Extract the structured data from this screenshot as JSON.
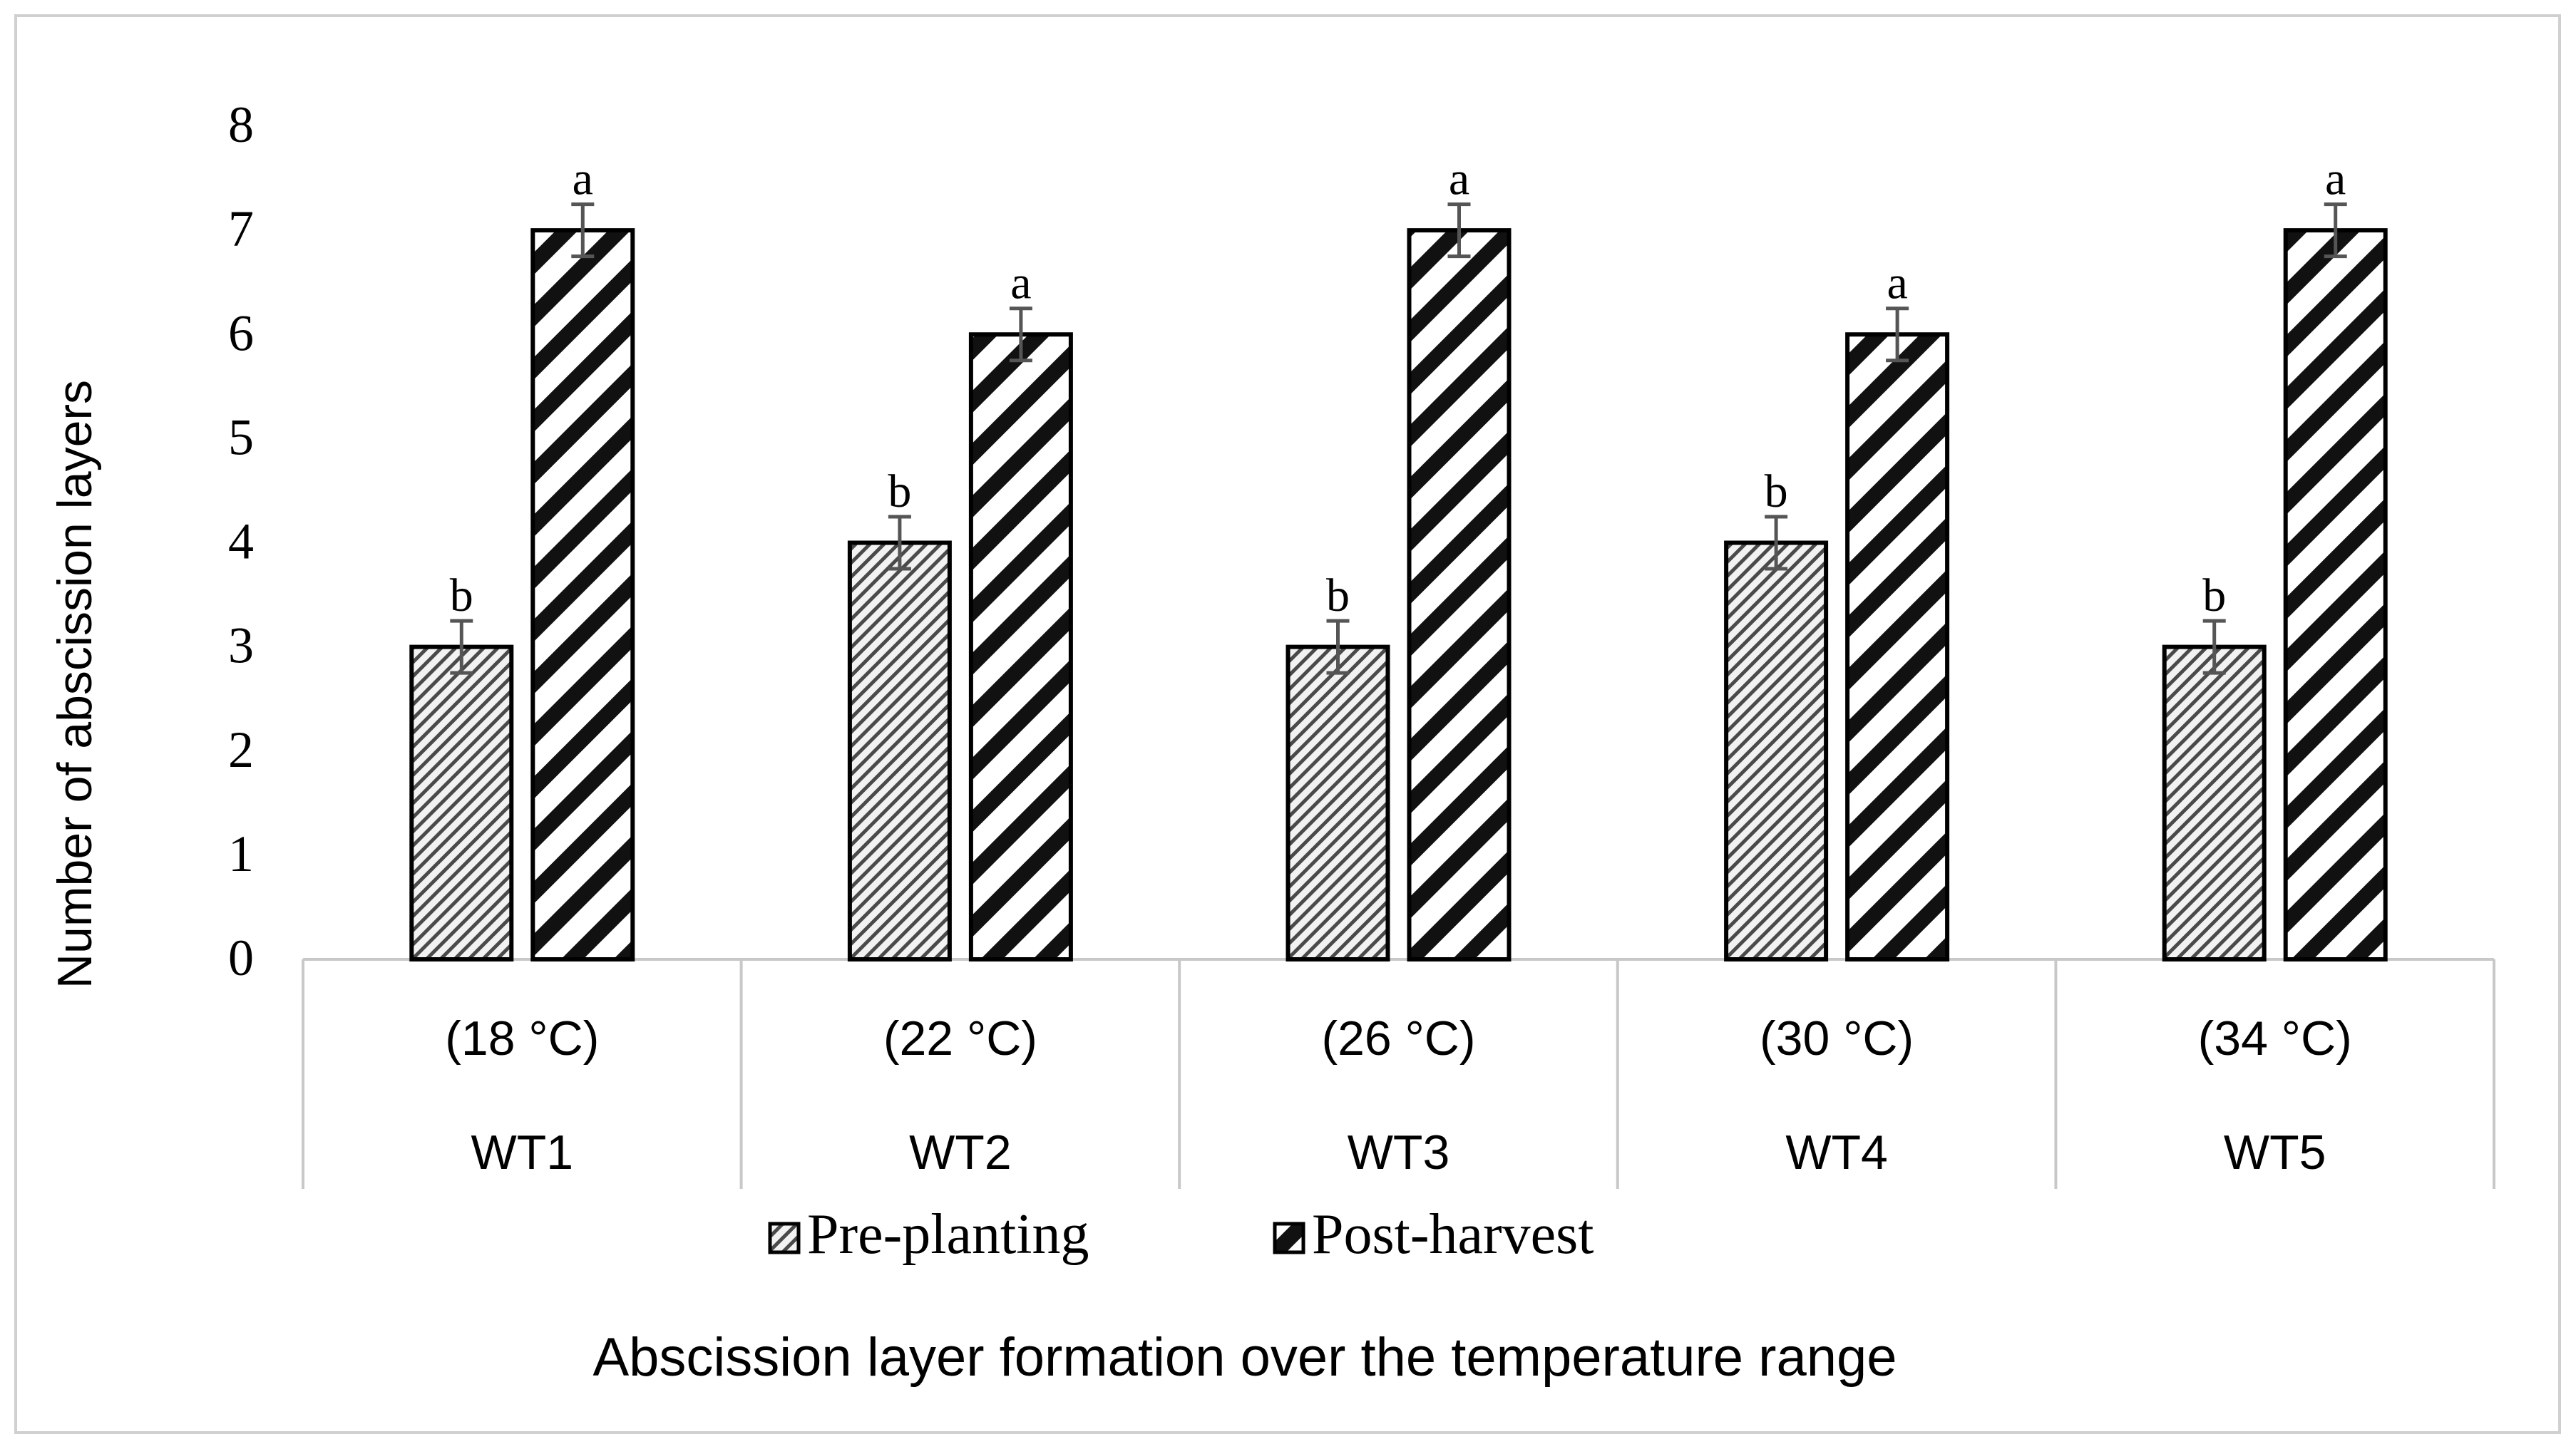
{
  "chart_data": {
    "type": "bar",
    "title": "",
    "ylabel": "Number of abscission layers",
    "xlabel": "Abscission layer formation over the temperature range",
    "ylim": [
      0,
      8
    ],
    "yticks": [
      "0",
      "1",
      "2",
      "3",
      "4",
      "5",
      "6",
      "7",
      "8"
    ],
    "categories": [
      {
        "temp": "(18 °C)",
        "name": "WT1"
      },
      {
        "temp": "(22 °C)",
        "name": "WT2"
      },
      {
        "temp": "(26 °C)",
        "name": "WT3"
      },
      {
        "temp": "(30 °C)",
        "name": "WT4"
      },
      {
        "temp": "(34 °C)",
        "name": "WT5"
      }
    ],
    "series": [
      {
        "name": "Pre-planting",
        "values": [
          3,
          4,
          3,
          4,
          3
        ],
        "errors": [
          0.25,
          0.25,
          0.25,
          0.25,
          0.25
        ],
        "labels": [
          "b",
          "b",
          "b",
          "b",
          "b"
        ]
      },
      {
        "name": "Post-harvest",
        "values": [
          7,
          6,
          7,
          6,
          7
        ],
        "errors": [
          0.25,
          0.25,
          0.25,
          0.25,
          0.25
        ],
        "labels": [
          "a",
          "a",
          "a",
          "a",
          "a"
        ]
      }
    ],
    "legend_position": "bottom",
    "colors": {
      "bar_stroke": "#000000",
      "pre_fill_light": "#f2f2f2",
      "pre_fill_dark": "#4a4a4a",
      "post_fill_light": "#ffffff",
      "post_fill_dark": "#111111",
      "error_bar": "#555555",
      "frame": "#d0d0d0",
      "axis_line": "#c8c8c8"
    }
  }
}
